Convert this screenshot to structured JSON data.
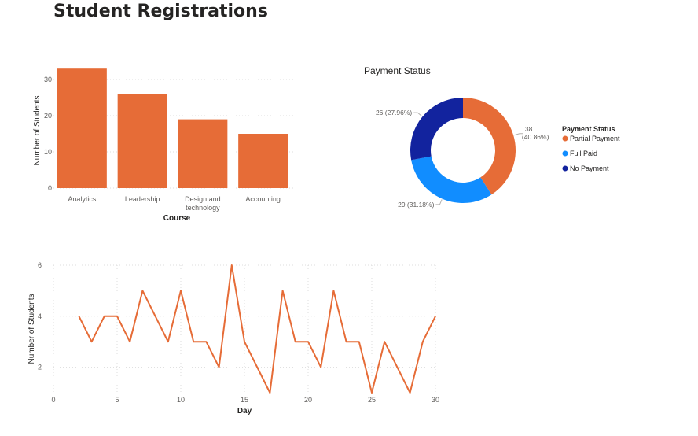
{
  "page": {
    "title": "Student Registrations"
  },
  "chart_data": [
    {
      "type": "bar",
      "title": "",
      "xlabel": "Course",
      "ylabel": "Number of Students",
      "categories": [
        "Analytics",
        "Leadership",
        "Design and technology",
        "Accounting"
      ],
      "values": [
        33,
        26,
        19,
        15
      ],
      "yticks": [
        0,
        10,
        20,
        30
      ],
      "ylim": [
        0,
        35
      ],
      "color": "#E66C37",
      "grid": true
    },
    {
      "type": "pie",
      "donut": true,
      "title": "Payment Status",
      "legend_title": "Payment Status",
      "legend_position": "right",
      "slices": [
        {
          "name": "Partial Payment",
          "value": 38,
          "label_value": "38",
          "label_pct": "(40.86%)",
          "color": "#E66C37"
        },
        {
          "name": "Full Paid",
          "value": 29,
          "label_value": "29",
          "label_pct": "(31.18%)",
          "color": "#118DFF"
        },
        {
          "name": "No Payment",
          "value": 26,
          "label_value": "26",
          "label_pct": "(27.96%)",
          "color": "#12239E"
        }
      ]
    },
    {
      "type": "line",
      "title": "",
      "xlabel": "Day",
      "ylabel": "Number of Students",
      "x": [
        2,
        3,
        4,
        5,
        6,
        7,
        8,
        9,
        10,
        11,
        12,
        13,
        14,
        15,
        16,
        17,
        18,
        19,
        20,
        21,
        22,
        23,
        24,
        25,
        26,
        27,
        28,
        29,
        30
      ],
      "y": [
        4,
        3,
        4,
        4,
        3,
        5,
        4,
        3,
        5,
        3,
        3,
        2,
        6,
        3,
        2,
        1,
        5,
        3,
        3,
        2,
        5,
        3,
        3,
        1,
        3,
        2,
        1,
        3,
        4
      ],
      "xticks": [
        0,
        5,
        10,
        15,
        20,
        25,
        30
      ],
      "yticks": [
        2,
        4,
        6
      ],
      "xlim": [
        0,
        30
      ],
      "ylim": [
        1,
        6
      ],
      "color": "#E66C37",
      "grid": true
    }
  ]
}
